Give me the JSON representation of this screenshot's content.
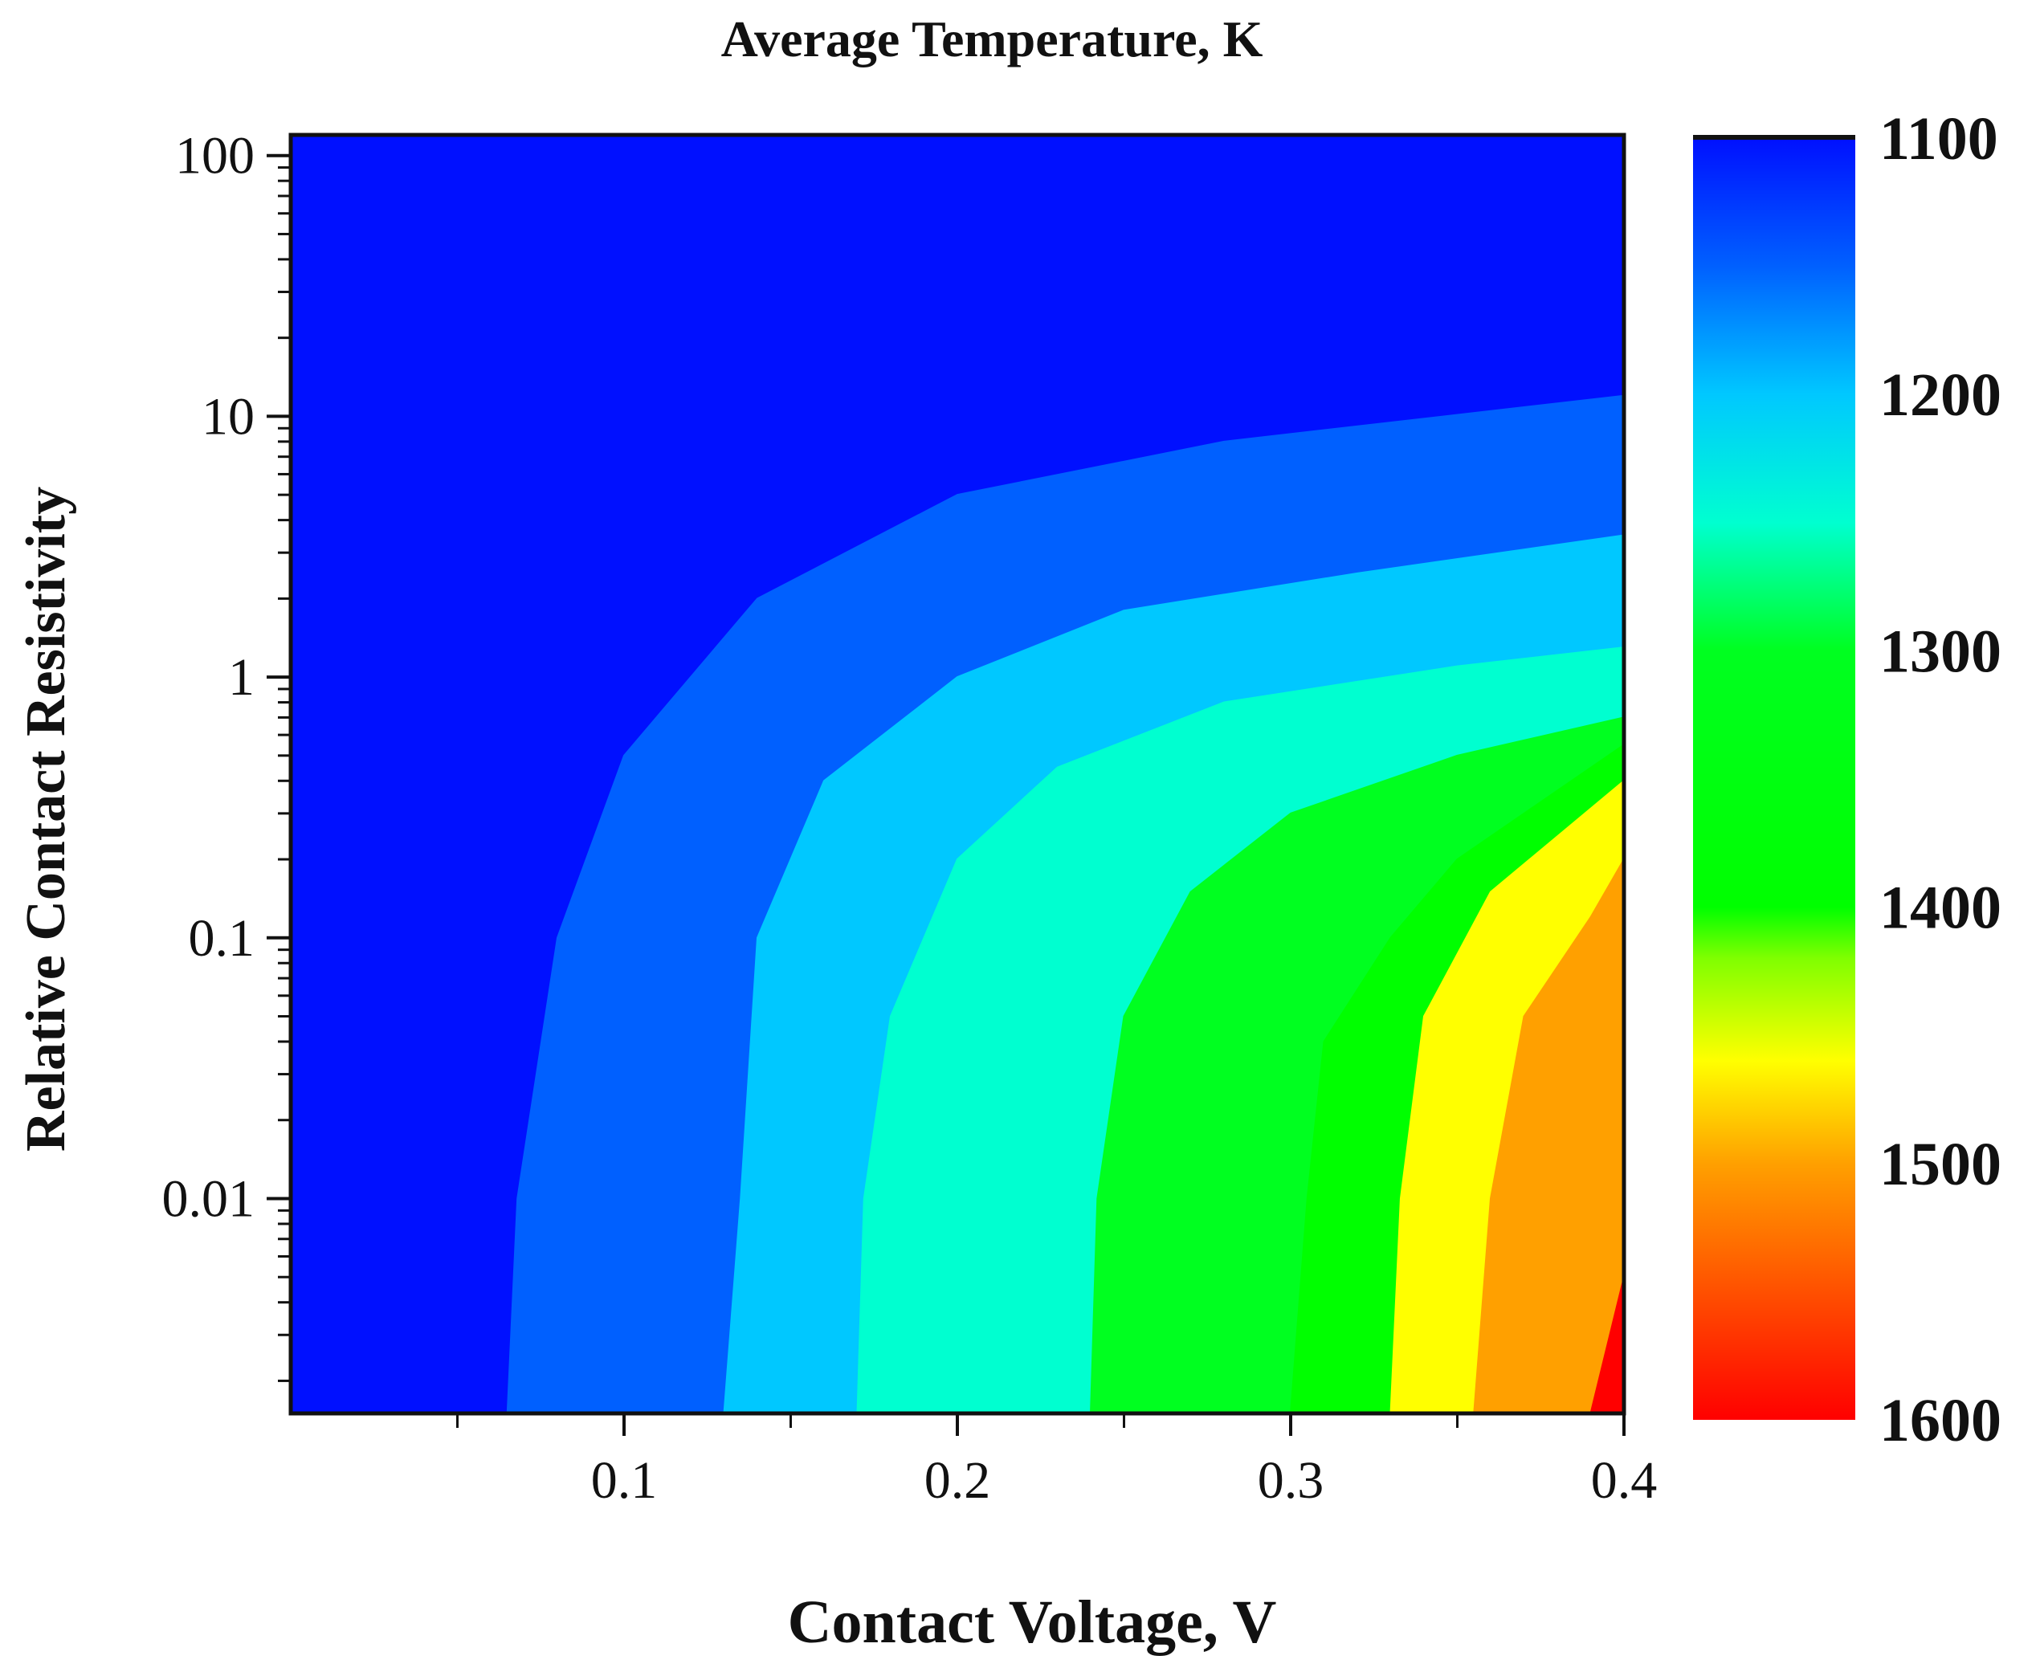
{
  "chart_data": {
    "type": "heatmap",
    "title": "Average Temperature, K",
    "xlabel": "Contact Voltage, V",
    "ylabel": "Relative Contact Resistivity",
    "x_scale": "linear",
    "y_scale": "log",
    "xlim": [
      0.0,
      0.4
    ],
    "ylim": [
      0.0015,
      120
    ],
    "x_ticks": [
      {
        "value": 0.1,
        "label": "0.1"
      },
      {
        "value": 0.2,
        "label": "0.2"
      },
      {
        "value": 0.3,
        "label": "0.3"
      },
      {
        "value": 0.4,
        "label": "0.4"
      }
    ],
    "x_minor_ticks": [
      0.05,
      0.15,
      0.25,
      0.35
    ],
    "y_ticks": [
      {
        "value": 100,
        "label": "100"
      },
      {
        "value": 10,
        "label": "10"
      },
      {
        "value": 1,
        "label": "1"
      },
      {
        "value": 0.1,
        "label": "0.1"
      },
      {
        "value": 0.01,
        "label": "0.01"
      }
    ],
    "colorbar": {
      "min": 1100,
      "max": 1600,
      "ticks": [
        {
          "value": 1100,
          "label": "1100"
        },
        {
          "value": 1200,
          "label": "1200"
        },
        {
          "value": 1300,
          "label": "1300"
        },
        {
          "value": 1400,
          "label": "1400"
        },
        {
          "value": 1500,
          "label": "1500"
        },
        {
          "value": 1600,
          "label": "1600"
        }
      ],
      "colors": [
        {
          "value": 1100,
          "color": "#0010ff"
        },
        {
          "value": 1150,
          "color": "#0060ff"
        },
        {
          "value": 1200,
          "color": "#00c8ff"
        },
        {
          "value": 1250,
          "color": "#00ffd0"
        },
        {
          "value": 1300,
          "color": "#00ff20"
        },
        {
          "value": 1400,
          "color": "#00ff00"
        },
        {
          "value": 1420,
          "color": "#80ff00"
        },
        {
          "value": 1460,
          "color": "#ffff00"
        },
        {
          "value": 1500,
          "color": "#ffa000"
        },
        {
          "value": 1550,
          "color": "#ff5000"
        },
        {
          "value": 1600,
          "color": "#ff0000"
        }
      ]
    },
    "contours": [
      {
        "value": 1150,
        "points": [
          [
            0.065,
            0.0015
          ],
          [
            0.068,
            0.01
          ],
          [
            0.08,
            0.1
          ],
          [
            0.1,
            0.5
          ],
          [
            0.14,
            2
          ],
          [
            0.2,
            5
          ],
          [
            0.28,
            8
          ],
          [
            0.4,
            12
          ]
        ]
      },
      {
        "value": 1200,
        "points": [
          [
            0.13,
            0.0015
          ],
          [
            0.135,
            0.01
          ],
          [
            0.14,
            0.1
          ],
          [
            0.16,
            0.4
          ],
          [
            0.2,
            1.0
          ],
          [
            0.25,
            1.8
          ],
          [
            0.32,
            2.5
          ],
          [
            0.4,
            3.5
          ]
        ]
      },
      {
        "value": 1250,
        "points": [
          [
            0.17,
            0.0015
          ],
          [
            0.172,
            0.01
          ],
          [
            0.18,
            0.05
          ],
          [
            0.2,
            0.2
          ],
          [
            0.23,
            0.45
          ],
          [
            0.28,
            0.8
          ],
          [
            0.35,
            1.1
          ],
          [
            0.4,
            1.3
          ]
        ]
      },
      {
        "value": 1300,
        "points": [
          [
            0.24,
            0.0015
          ],
          [
            0.242,
            0.01
          ],
          [
            0.25,
            0.05
          ],
          [
            0.27,
            0.15
          ],
          [
            0.3,
            0.3
          ],
          [
            0.35,
            0.5
          ],
          [
            0.4,
            0.7
          ]
        ]
      },
      {
        "value": 1400,
        "points": [
          [
            0.3,
            0.0015
          ],
          [
            0.305,
            0.01
          ],
          [
            0.31,
            0.04
          ],
          [
            0.33,
            0.1
          ],
          [
            0.35,
            0.2
          ],
          [
            0.4,
            0.55
          ]
        ]
      },
      {
        "value": 1460,
        "points": [
          [
            0.33,
            0.0015
          ],
          [
            0.333,
            0.01
          ],
          [
            0.34,
            0.05
          ],
          [
            0.36,
            0.15
          ],
          [
            0.4,
            0.4
          ]
        ]
      },
      {
        "value": 1500,
        "points": [
          [
            0.355,
            0.0015
          ],
          [
            0.36,
            0.01
          ],
          [
            0.37,
            0.05
          ],
          [
            0.39,
            0.12
          ],
          [
            0.4,
            0.2
          ]
        ]
      },
      {
        "value": 1600,
        "points": [
          [
            0.39,
            0.0015
          ],
          [
            0.4,
            0.005
          ]
        ]
      }
    ]
  }
}
